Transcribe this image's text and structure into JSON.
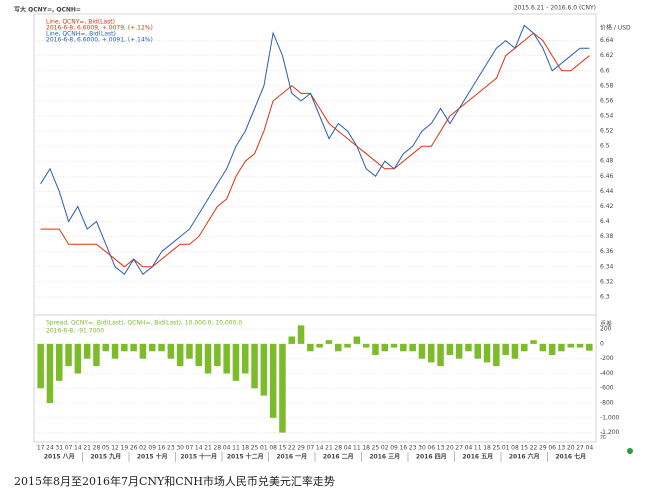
{
  "header": {
    "title": "写大 QCNY=, QCNH=",
    "range": "2015.6.21 - 2016.6.0 (CNY)"
  },
  "chart_data": [
    {
      "type": "line",
      "axis_label": "价格 / USD",
      "ylim": [
        6.28,
        6.67
      ],
      "yticks": [
        6.3,
        6.32,
        6.34,
        6.36,
        6.38,
        6.4,
        6.42,
        6.44,
        6.46,
        6.48,
        6.5,
        6.52,
        6.54,
        6.56,
        6.58,
        6.6,
        6.62,
        6.64
      ],
      "grid": true,
      "series": [
        {
          "name": "Line, QCNY=, Bid(Last)",
          "info": "2016-6-8, 6.6009, +.0079, (+.12%)",
          "color": "#e03010",
          "values": [
            6.39,
            6.39,
            6.39,
            6.37,
            6.37,
            6.37,
            6.37,
            6.36,
            6.35,
            6.34,
            6.35,
            6.34,
            6.34,
            6.35,
            6.36,
            6.37,
            6.37,
            6.38,
            6.4,
            6.42,
            6.43,
            6.46,
            6.48,
            6.49,
            6.52,
            6.56,
            6.57,
            6.58,
            6.57,
            6.57,
            6.55,
            6.53,
            6.52,
            6.51,
            6.5,
            6.49,
            6.48,
            6.47,
            6.47,
            6.48,
            6.49,
            6.5,
            6.5,
            6.52,
            6.54,
            6.55,
            6.56,
            6.57,
            6.58,
            6.59,
            6.62,
            6.63,
            6.64,
            6.65,
            6.64,
            6.62,
            6.6,
            6.6,
            6.61,
            6.62
          ]
        },
        {
          "name": "Line, QCNH=, Bid(Last)",
          "info": "2016-6-8, 6.6000, +.0091, (+.14%)",
          "color": "#2a5db0",
          "values": [
            6.45,
            6.47,
            6.44,
            6.4,
            6.42,
            6.39,
            6.4,
            6.37,
            6.34,
            6.33,
            6.35,
            6.33,
            6.34,
            6.36,
            6.37,
            6.38,
            6.39,
            6.41,
            6.43,
            6.45,
            6.47,
            6.5,
            6.52,
            6.55,
            6.58,
            6.65,
            6.62,
            6.57,
            6.56,
            6.57,
            6.54,
            6.51,
            6.53,
            6.52,
            6.5,
            6.47,
            6.46,
            6.48,
            6.47,
            6.49,
            6.5,
            6.52,
            6.53,
            6.55,
            6.53,
            6.55,
            6.57,
            6.59,
            6.61,
            6.63,
            6.64,
            6.63,
            6.66,
            6.65,
            6.63,
            6.6,
            6.61,
            6.62,
            6.63,
            6.63
          ]
        }
      ]
    },
    {
      "type": "bar",
      "name": "Spread, QCNY=, Bid(Last), QCNH=, Bid(Last), 10,000.0, 10,000.0",
      "info": "2016-6-8, -91.7000",
      "axis_label": "点差",
      "unit_label": "元",
      "color": "#7cbb2a",
      "ylim": [
        -1300,
        350
      ],
      "yticks": [
        200,
        0,
        -200,
        -400,
        -600,
        -800,
        {
          "value": -1000,
          "label": "-1,000"
        },
        {
          "value": -1200,
          "label": "-1,200"
        }
      ],
      "grid": true,
      "categories": [
        "17",
        "24",
        "31",
        "07",
        "14",
        "21",
        "28",
        "05",
        "12",
        "19",
        "26",
        "02",
        "09",
        "16",
        "23",
        "30",
        "07",
        "14",
        "21",
        "28",
        "04",
        "11",
        "18",
        "25",
        "01",
        "08",
        "15",
        "22",
        "29",
        "07",
        "14",
        "21",
        "28",
        "04",
        "11",
        "18",
        "25",
        "02",
        "09",
        "16",
        "23",
        "30",
        "06",
        "13",
        "20",
        "27",
        "04",
        "11",
        "18",
        "25",
        "01",
        "08",
        "15",
        "22",
        "29",
        "06",
        "13",
        "20",
        "27",
        "04"
      ],
      "month_labels": [
        "2015 八月",
        "2015 九月",
        "2015 十月",
        "2015 十一月",
        "2015 十二月",
        "2016 一月",
        "2016 二月",
        "2016 三月",
        "2016 四月",
        "2016 五月",
        "2016 六月",
        "2016 七月"
      ],
      "values": [
        -600,
        -800,
        -500,
        -300,
        -400,
        -200,
        -300,
        -100,
        -200,
        -100,
        -100,
        -200,
        -100,
        -100,
        -200,
        -300,
        -200,
        -300,
        -400,
        -300,
        -400,
        -500,
        -400,
        -600,
        -700,
        -1000,
        -1200,
        100,
        250,
        -100,
        -50,
        50,
        -100,
        -50,
        100,
        -50,
        -150,
        -100,
        -50,
        -100,
        -100,
        -200,
        -250,
        -300,
        -150,
        -200,
        -100,
        -200,
        -250,
        -300,
        -150,
        -200,
        -100,
        50,
        -100,
        -150,
        -100,
        -50,
        -50,
        -92
      ]
    }
  ],
  "caption": "2015年8月至2016年7月CNY和CNH市场人民币兑美元汇率走势"
}
